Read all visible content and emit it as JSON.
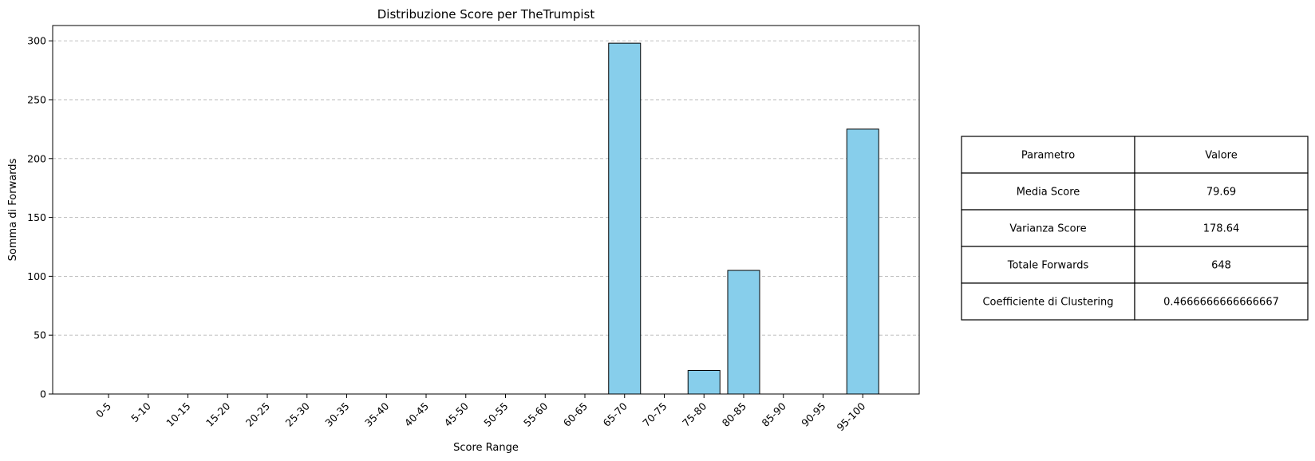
{
  "chart_data": {
    "type": "bar",
    "title": "Distribuzione Score per TheTrumpist",
    "xlabel": "Score Range",
    "ylabel": "Somma di Forwards",
    "categories": [
      "0-5",
      "5-10",
      "10-15",
      "15-20",
      "20-25",
      "25-30",
      "30-35",
      "35-40",
      "40-45",
      "45-50",
      "50-55",
      "55-60",
      "60-65",
      "65-70",
      "70-75",
      "75-80",
      "80-85",
      "85-90",
      "90-95",
      "95-100"
    ],
    "values": [
      0,
      0,
      0,
      0,
      0,
      0,
      0,
      0,
      0,
      0,
      0,
      0,
      0,
      298,
      0,
      20,
      105,
      0,
      0,
      225
    ],
    "ylim": [
      0,
      313
    ],
    "yticks": [
      0,
      50,
      100,
      150,
      200,
      250,
      300
    ],
    "grid": "horizontal dashed",
    "bar_color": "#87CEEB",
    "edge_color": "#000000"
  },
  "stats_table": {
    "header": [
      "Parametro",
      "Valore"
    ],
    "rows": [
      [
        "Media Score",
        "79.69"
      ],
      [
        "Varianza Score",
        "178.64"
      ],
      [
        "Totale Forwards",
        "648"
      ],
      [
        "Coefficiente di Clustering",
        "0.4666666666666667"
      ]
    ]
  }
}
